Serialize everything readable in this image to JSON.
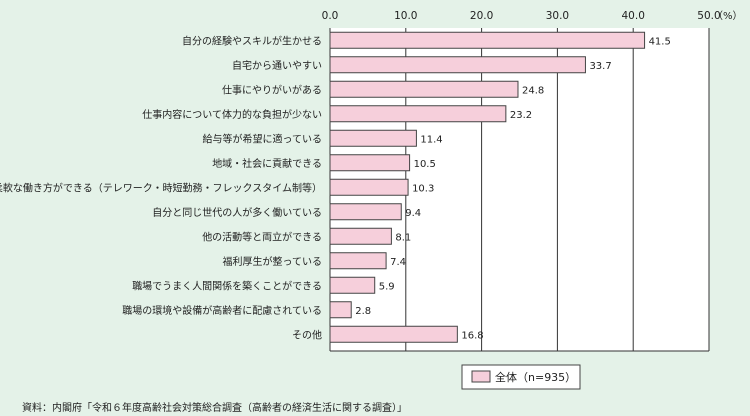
{
  "chart_data": {
    "type": "bar",
    "orientation": "horizontal",
    "title": "",
    "xlabel": "",
    "ylabel": "",
    "unit_label": "（%）",
    "xlim": [
      0,
      50
    ],
    "ticks": [
      "0.0",
      "10.0",
      "20.0",
      "30.0",
      "40.0",
      "50.0"
    ],
    "grid": true,
    "legend_position": "bottom-right",
    "categories": [
      "自分の経験やスキルが生かせる",
      "自宅から通いやすい",
      "仕事にやりがいがある",
      "仕事内容について体力的な負担が少ない",
      "給与等が希望に適っている",
      "地域・社会に貢献できる",
      "柔軟な働き方ができる（テレワーク・時短勤務・フレックスタイム制等）",
      "自分と同じ世代の人が多く働いている",
      "他の活動等と両立ができる",
      "福利厚生が整っている",
      "職場でうまく人間関係を築くことができる",
      "職場の環境や設備が高齢者に配慮されている",
      "その他"
    ],
    "series": [
      {
        "name": "全体（n=935）",
        "values": [
          41.5,
          33.7,
          24.8,
          23.2,
          11.4,
          10.5,
          10.3,
          9.4,
          8.1,
          7.4,
          5.9,
          2.8,
          16.8
        ],
        "color": "#f6cfdb"
      }
    ],
    "value_labels": [
      "41.5",
      "33.7",
      "24.8",
      "23.2",
      "11.4",
      "10.5",
      "10.3",
      "9.4",
      "8.1",
      "7.4",
      "5.9",
      "2.8",
      "16.8"
    ]
  },
  "colors": {
    "background": "#e4f2e8",
    "plot_background": "#ffffff",
    "bar_fill": "#f6cfdb",
    "bar_stroke": "#444444",
    "grid": "#333333"
  },
  "source_note": "資料：内閣府「令和６年度高齢社会対策総合調査（高齢者の経済生活に関する調査）」"
}
